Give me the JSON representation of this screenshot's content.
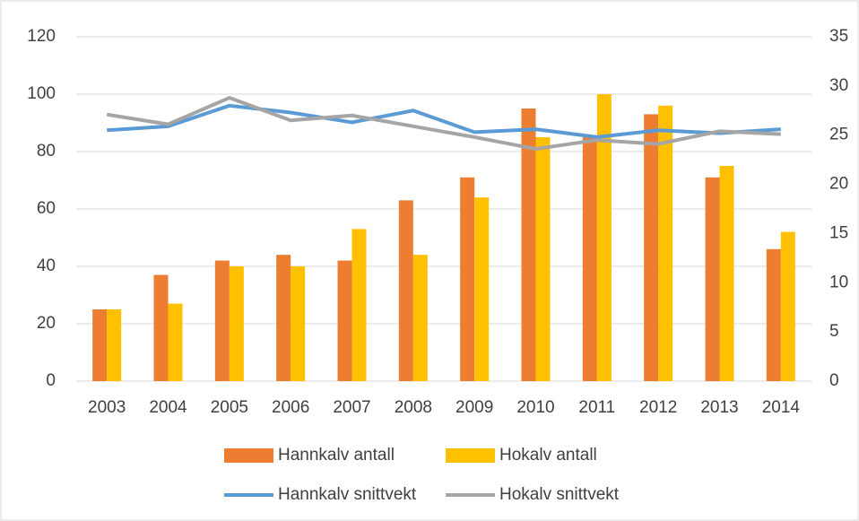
{
  "chart_data": {
    "type": "bar",
    "categories": [
      "2003",
      "2004",
      "2005",
      "2006",
      "2007",
      "2008",
      "2009",
      "2010",
      "2011",
      "2012",
      "2013",
      "2014"
    ],
    "series": [
      {
        "name": "Hannkalv antall",
        "type": "bar",
        "color": "#ED7D31",
        "values": [
          25,
          37,
          42,
          44,
          42,
          63,
          71,
          95,
          85,
          93,
          71,
          46
        ]
      },
      {
        "name": "Hokalv antall",
        "type": "bar",
        "color": "#FFC000",
        "values": [
          25,
          27,
          40,
          40,
          53,
          44,
          64,
          85,
          100,
          96,
          75,
          52
        ]
      },
      {
        "name": "Hannkalv snittvekt",
        "type": "line",
        "axis": "y2",
        "color": "#5B9BD5",
        "values": [
          25.5,
          25.9,
          28.0,
          27.3,
          26.3,
          27.5,
          25.3,
          25.6,
          24.8,
          25.5,
          25.2,
          25.6
        ]
      },
      {
        "name": "Hokalv snittvekt",
        "type": "line",
        "axis": "y2",
        "color": "#A5A5A5",
        "values": [
          27.1,
          26.1,
          28.8,
          26.5,
          27.0,
          25.9,
          24.8,
          23.6,
          24.5,
          24.1,
          25.4,
          25.1
        ]
      }
    ],
    "ylim": [
      0,
      120
    ],
    "yticks": [
      0,
      20,
      40,
      60,
      80,
      100,
      120
    ],
    "y2lim": [
      0,
      35
    ],
    "y2ticks": [
      0,
      5,
      10,
      15,
      20,
      25,
      30,
      35
    ],
    "grid": true
  }
}
